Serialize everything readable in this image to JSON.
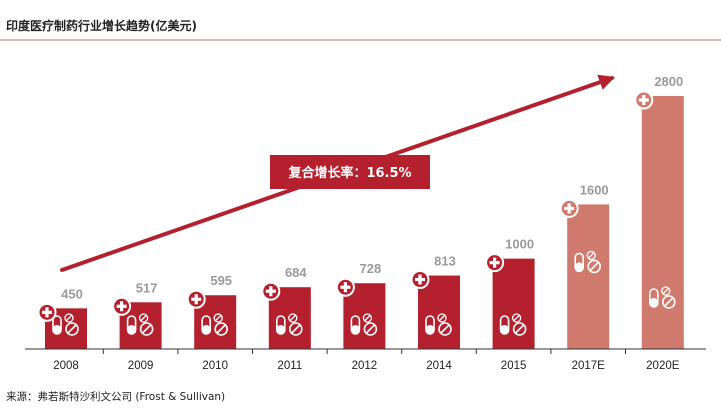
{
  "chart_data": {
    "type": "bar",
    "title": "印度医疗制药行业增长趋势(亿美元)",
    "categories": [
      "2008",
      "2009",
      "2010",
      "2011",
      "2012",
      "2014",
      "2015",
      "2017E",
      "2020E"
    ],
    "values": [
      450,
      517,
      595,
      684,
      728,
      813,
      1000,
      1600,
      2800
    ],
    "forecast": [
      false,
      false,
      false,
      false,
      false,
      false,
      false,
      true,
      true
    ],
    "xlabel": "",
    "ylabel": "亿美元",
    "ylim": [
      0,
      2900
    ],
    "grid": false,
    "annotation": "复合增长率：16.5%",
    "source": "来源：弗若斯特沙利文公司 (Frost & Sullivan)"
  },
  "colors": {
    "actual": "#b5202e",
    "forecast": "#cf7a6c",
    "arrow": "#b5202e",
    "label_box": "#b5202e",
    "title_rule": "#c9a3a3",
    "axis": "#333333"
  },
  "icons": {
    "plus": "medical-plus-icon",
    "pills": "pills-icon"
  }
}
